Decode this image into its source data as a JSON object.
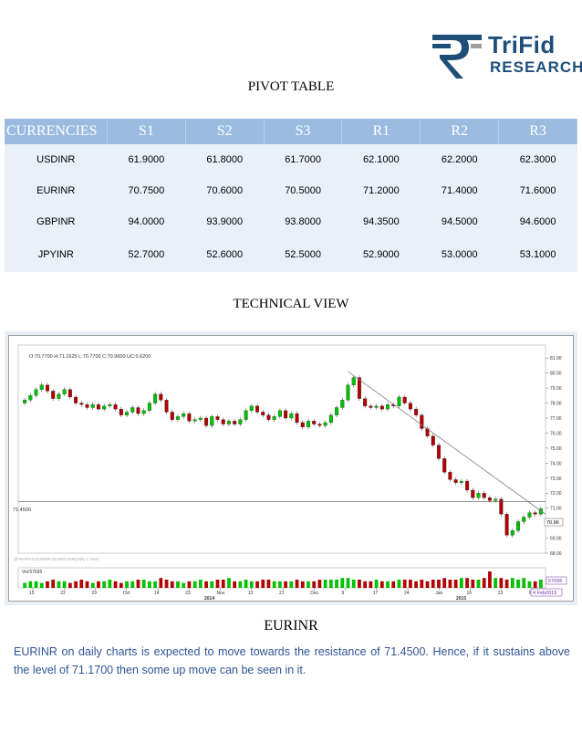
{
  "logo": {
    "line1": "TriFid",
    "line2": "RESEARCH",
    "colors": {
      "primary": "#1f4e79",
      "accent": "#9e9e9e"
    }
  },
  "pivot_title": "PIVOT TABLE",
  "pivot_table": {
    "headers": [
      "CURRENCIES",
      "S1",
      "S2",
      "S3",
      "R1",
      "R2",
      "R3"
    ],
    "rows": [
      [
        "USDINR",
        "61.9000",
        "61.8000",
        "61.7000",
        "62.1000",
        "62.2000",
        "62.3000"
      ],
      [
        "EURINR",
        "70.7500",
        "70.6000",
        "70.5000",
        "71.2000",
        "71.4000",
        "71.6000"
      ],
      [
        "GBPINR",
        "94.0000",
        "93.9000",
        "93.8000",
        "94.3500",
        "94.5000",
        "94.6000"
      ],
      [
        "JPYINR",
        "52.7000",
        "52.6000",
        "52.5000",
        "52.9000",
        "53.0000",
        "53.1000"
      ]
    ]
  },
  "technical_title": "TECHNICAL VIEW",
  "chart": {
    "ohlc_readout": "O:70.7700  H:71.1625  L:70.7700  C:70.9600  UC:0.6200",
    "support_label": "71.4500",
    "last_price_tag": "70.96",
    "volume_label": "Vol:57695",
    "volume_tag": "57695",
    "date_tag": "4 Feb2015",
    "watermark": "@TelePrint EURINR (EURO) INR(Daily 1 Year)",
    "year_labels": [
      "2014",
      "2015"
    ],
    "colors": {
      "up": "#00c000",
      "down": "#b00000",
      "trend": "#808080"
    }
  },
  "chart_data": {
    "type": "candlestick",
    "title": "",
    "y_ticks": [
      "81.00",
      "80.00",
      "79.00",
      "78.00",
      "77.00",
      "76.00",
      "75.00",
      "74.00",
      "73.00",
      "72.00",
      "71.00",
      "70.00",
      "69.00",
      "68.00"
    ],
    "x_ticks": [
      "15",
      "22",
      "29",
      "Oct",
      "14",
      "23",
      "Nov",
      "13",
      "21",
      "Dec",
      "9",
      "17",
      "24",
      "Jan",
      "16",
      "23",
      "Feb"
    ],
    "ylim": [
      68,
      81.5
    ],
    "support_level": 71.45,
    "trendline": {
      "from": 80.1,
      "to": 70.6
    },
    "closes": [
      78.2,
      78.5,
      78.9,
      79.2,
      78.8,
      78.3,
      78.6,
      78.9,
      78.4,
      78.0,
      77.9,
      77.7,
      77.9,
      77.6,
      77.8,
      77.9,
      77.6,
      77.2,
      77.4,
      77.7,
      77.3,
      77.5,
      78.0,
      78.6,
      78.2,
      77.4,
      76.9,
      77.1,
      77.3,
      76.8,
      76.9,
      77.0,
      76.5,
      77.1,
      76.9,
      76.6,
      76.8,
      76.6,
      76.9,
      77.5,
      77.8,
      77.4,
      77.2,
      76.9,
      77.1,
      77.5,
      77.0,
      77.3,
      76.7,
      76.4,
      76.8,
      76.6,
      76.5,
      76.7,
      77.2,
      77.7,
      78.2,
      79.2,
      79.7,
      78.3,
      77.8,
      77.7,
      77.8,
      77.6,
      77.9,
      77.8,
      78.4,
      78.0,
      77.6,
      77.2,
      76.3,
      75.8,
      75.2,
      74.3,
      73.4,
      72.9,
      72.7,
      72.8,
      72.2,
      71.7,
      72.0,
      71.7,
      71.5,
      71.6,
      70.6,
      69.2,
      69.5,
      70.1,
      70.4,
      70.7,
      70.6,
      70.96
    ],
    "volumes": [
      3,
      4,
      4,
      3,
      4,
      5,
      4,
      4,
      3,
      4,
      5,
      4,
      3,
      4,
      4,
      5,
      4,
      3,
      4,
      4,
      5,
      5,
      4,
      4,
      6,
      5,
      4,
      4,
      3,
      4,
      4,
      5,
      4,
      4,
      5,
      5,
      6,
      4,
      4,
      5,
      4,
      4,
      5,
      5,
      4,
      4,
      4,
      4,
      5,
      4,
      4,
      4,
      5,
      5,
      5,
      5,
      6,
      6,
      5,
      5,
      4,
      4,
      5,
      4,
      4,
      4,
      5,
      5,
      5,
      4,
      5,
      4,
      5,
      5,
      6,
      5,
      5,
      6,
      6,
      5,
      5,
      6,
      10,
      6,
      6,
      5,
      6,
      5,
      6,
      4,
      4,
      5
    ]
  },
  "pair_title": "EURINR",
  "analysis_text": "EURINR on daily charts is expected to move towards the resistance of 71.4500. Hence, if it sustains above the level of 71.1700 then some up move can be seen in it."
}
